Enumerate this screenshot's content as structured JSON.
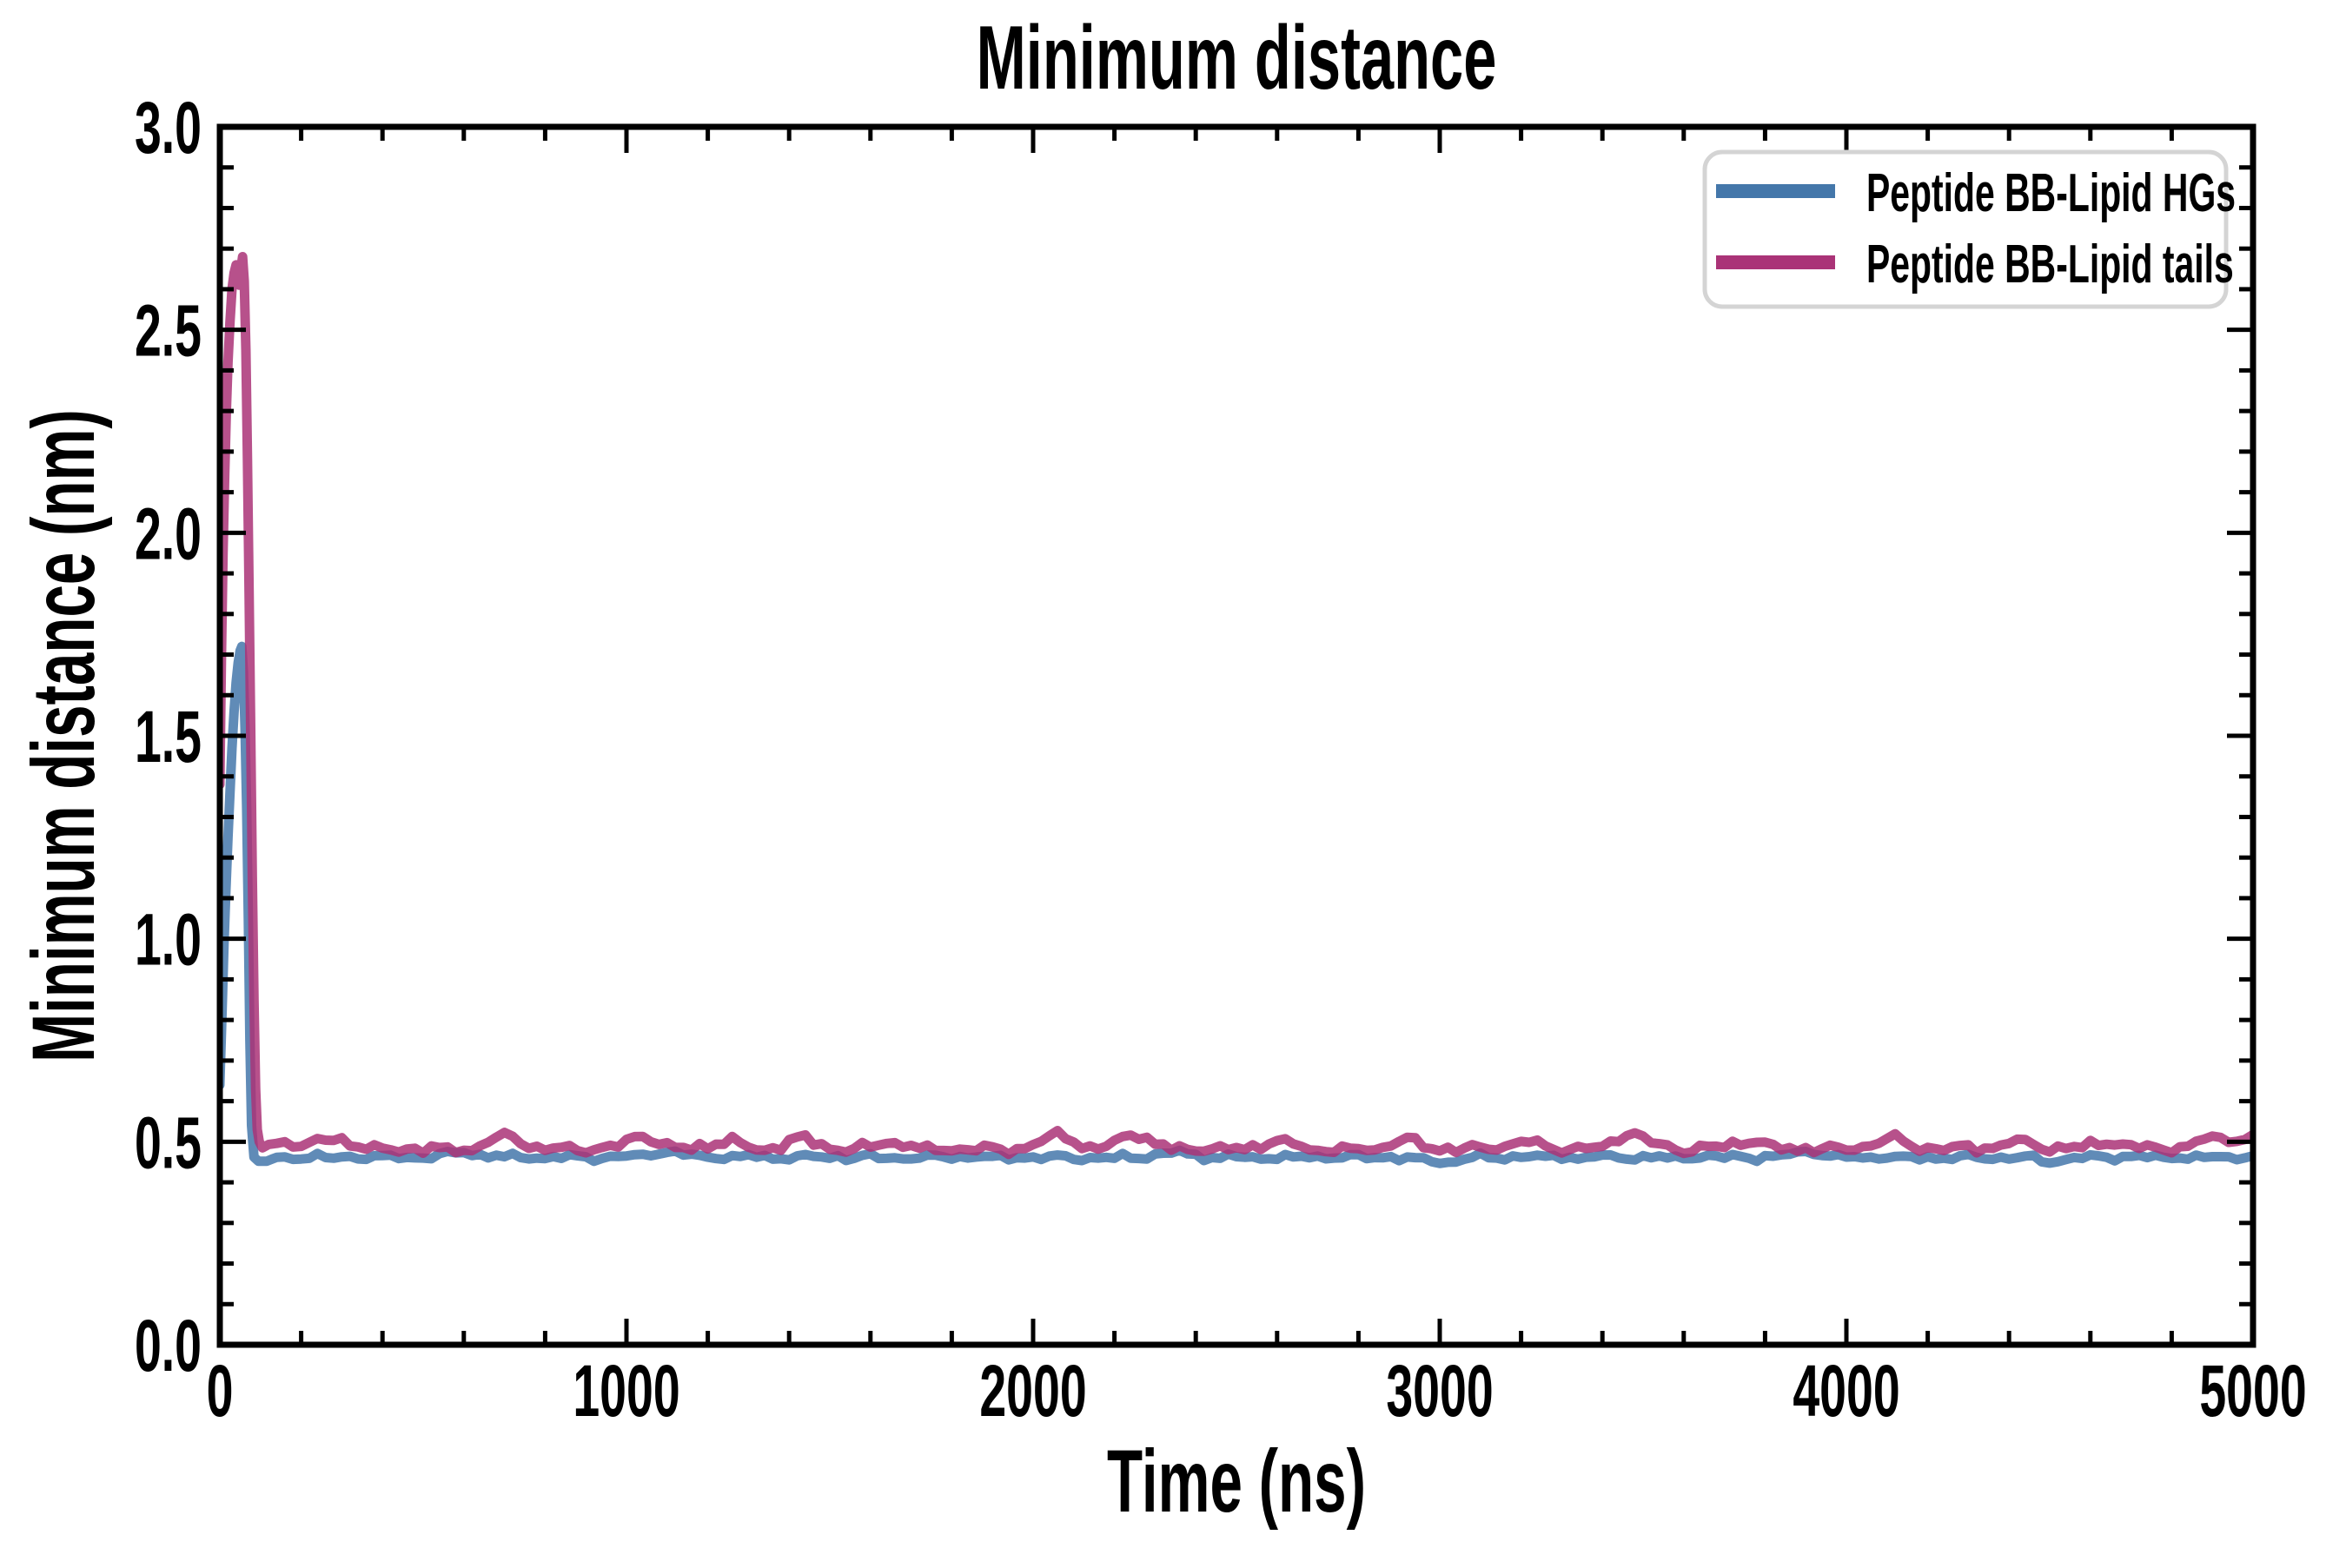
{
  "chart_data": {
    "type": "line",
    "title": "Minimum distance",
    "xlabel": "Time (ns)",
    "ylabel": "Minimum distance (nm)",
    "xlim": [
      0,
      5000
    ],
    "ylim": [
      0.0,
      3.0
    ],
    "grid": false,
    "background": "#ffffff",
    "axis_color": "#000000",
    "legend_position": "upper right",
    "x_axis": {
      "major_ticks": [
        0,
        1000,
        2000,
        3000,
        4000,
        5000
      ],
      "tick_labels": [
        "0",
        "1000",
        "2000",
        "3000",
        "4000",
        "5000"
      ],
      "minor_step": 200
    },
    "y_axis": {
      "major_ticks": [
        0.0,
        0.5,
        1.0,
        1.5,
        2.0,
        2.5,
        3.0
      ],
      "tick_labels": [
        "0.0",
        "0.5",
        "1.0",
        "1.5",
        "2.0",
        "2.5",
        "3.0"
      ],
      "minor_step": 0.1
    },
    "series": [
      {
        "name": "Peptide BB-Lipid HGs",
        "color": "#4477AA",
        "peak_value": 1.72,
        "peak_time": 54,
        "start_value": 0.64,
        "flat_mean": 0.462,
        "spike_points": [
          [
            0,
            0.64
          ],
          [
            5,
            0.8
          ],
          [
            10,
            0.98
          ],
          [
            15,
            1.12
          ],
          [
            20,
            1.25
          ],
          [
            25,
            1.36
          ],
          [
            30,
            1.47
          ],
          [
            35,
            1.56
          ],
          [
            40,
            1.63
          ],
          [
            45,
            1.68
          ],
          [
            50,
            1.71
          ],
          [
            54,
            1.72
          ],
          [
            58,
            1.66
          ],
          [
            62,
            1.52
          ],
          [
            66,
            1.32
          ],
          [
            70,
            1.05
          ],
          [
            74,
            0.75
          ],
          [
            78,
            0.54
          ],
          [
            84,
            0.462
          ],
          [
            95,
            0.452
          ],
          [
            115,
            0.452
          ],
          [
            130,
            0.458
          ]
        ],
        "flat": {
          "t_start": 140,
          "t_end": 5000,
          "step": 20,
          "base": 0.462,
          "amp": 0.008,
          "seed": 9.7,
          "bumps": [
            [
              600,
              0.012
            ],
            [
              1100,
              0.014
            ],
            [
              2350,
              0.012
            ],
            [
              3000,
              -0.012
            ],
            [
              3900,
              0.012
            ],
            [
              4500,
              -0.01
            ]
          ]
        }
      },
      {
        "name": "Peptide BB-Lipid tails",
        "color": "#AA3377",
        "peak_value": 2.68,
        "peak_time": 56,
        "start_value": 1.38,
        "flat_mean": 0.482,
        "spike_points": [
          [
            0,
            1.38
          ],
          [
            4,
            1.7
          ],
          [
            8,
            1.95
          ],
          [
            12,
            2.14
          ],
          [
            16,
            2.3
          ],
          [
            20,
            2.42
          ],
          [
            25,
            2.52
          ],
          [
            30,
            2.6
          ],
          [
            35,
            2.64
          ],
          [
            40,
            2.66
          ],
          [
            44,
            2.63
          ],
          [
            48,
            2.61
          ],
          [
            52,
            2.65
          ],
          [
            56,
            2.68
          ],
          [
            60,
            2.62
          ],
          [
            64,
            2.45
          ],
          [
            68,
            2.18
          ],
          [
            72,
            1.85
          ],
          [
            76,
            1.5
          ],
          [
            80,
            1.15
          ],
          [
            84,
            0.85
          ],
          [
            88,
            0.63
          ],
          [
            92,
            0.53
          ],
          [
            97,
            0.5
          ],
          [
            105,
            0.485
          ]
        ],
        "flat": {
          "t_start": 120,
          "t_end": 5000,
          "step": 20,
          "base": 0.482,
          "amp": 0.012,
          "seed": 4.2,
          "bumps": [
            [
              160,
              0.018
            ],
            [
              280,
              0.028
            ],
            [
              700,
              0.034
            ],
            [
              1040,
              0.03
            ],
            [
              1240,
              0.02
            ],
            [
              1430,
              0.024
            ],
            [
              1650,
              0.018
            ],
            [
              2060,
              0.038
            ],
            [
              2250,
              0.038
            ],
            [
              2600,
              0.02
            ],
            [
              2920,
              0.022
            ],
            [
              3200,
              0.018
            ],
            [
              3470,
              0.04
            ],
            [
              3760,
              0.02
            ],
            [
              4110,
              0.028
            ],
            [
              4420,
              0.018
            ],
            [
              4650,
              0.02
            ],
            [
              4900,
              0.028
            ],
            [
              4990,
              0.026
            ]
          ]
        }
      }
    ]
  },
  "legend": {
    "border_color": "#d4d4d4",
    "entries": [
      {
        "label": "Peptide BB-Lipid HGs",
        "color": "#4477AA"
      },
      {
        "label": "Peptide BB-Lipid tails",
        "color": "#AA3377"
      }
    ]
  }
}
